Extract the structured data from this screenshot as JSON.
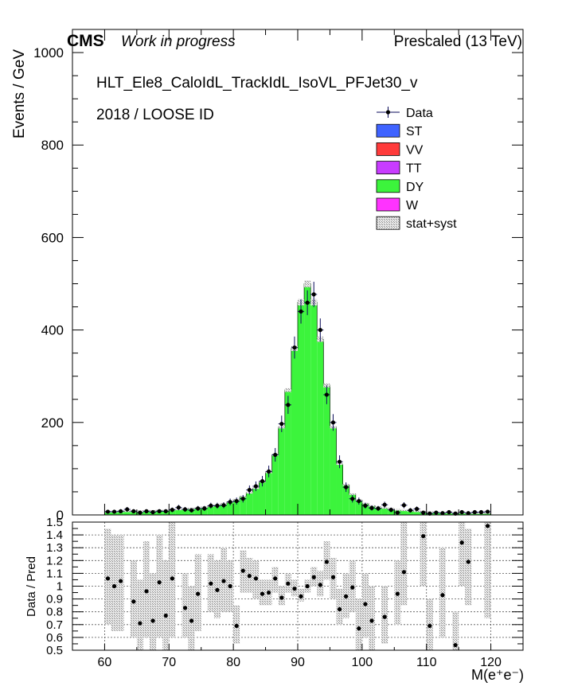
{
  "header": {
    "cms": "CMS",
    "status": "Work in progress",
    "energy": "Prescaled (13 TeV)"
  },
  "annotations": {
    "trigger": "HLT_Ele8_CaloIdL_TrackIdL_IsoVL_PFJet30_v",
    "selection": "2018 / LOOSE ID"
  },
  "colors": {
    "ST": "#3f63ff",
    "VV": "#ff3b3b",
    "TT": "#c83cff",
    "DY": "#3cf43c",
    "W": "#ff33ff",
    "data": "#000000",
    "frame": "#000000"
  },
  "chart_data": [
    {
      "type": "bar",
      "panel": "main",
      "ylabel": "Events / GeV",
      "xlim": [
        55,
        125
      ],
      "ylim": [
        0,
        1050
      ],
      "yticks": [
        0,
        200,
        400,
        600,
        800,
        1000
      ],
      "grid": false,
      "legend_placement": "top-right",
      "legend": [
        "Data",
        "ST",
        "VV",
        "TT",
        "DY",
        "W",
        "stat+syst"
      ],
      "bin_edges": [
        60,
        61,
        62,
        63,
        64,
        65,
        66,
        67,
        68,
        69,
        70,
        71,
        72,
        73,
        74,
        75,
        76,
        77,
        78,
        79,
        80,
        81,
        82,
        83,
        84,
        85,
        86,
        87,
        88,
        89,
        90,
        91,
        92,
        93,
        94,
        95,
        96,
        97,
        98,
        99,
        100,
        101,
        102,
        103,
        104,
        105,
        106,
        107,
        108,
        109,
        110,
        111,
        112,
        113,
        114,
        115,
        116,
        117,
        118,
        119,
        120
      ],
      "series": [
        {
          "name": "DY",
          "values": [
            7,
            7,
            8,
            8,
            8,
            8,
            9,
            9,
            10,
            10,
            11,
            12,
            13,
            14,
            15,
            17,
            19,
            21,
            24,
            28,
            33,
            40,
            48,
            58,
            72,
            92,
            130,
            190,
            270,
            360,
            460,
            500,
            460,
            380,
            280,
            190,
            110,
            65,
            45,
            32,
            25,
            20,
            17,
            15,
            13,
            11,
            10,
            9,
            8,
            7,
            6,
            6,
            5,
            5,
            5,
            5,
            4,
            4,
            4,
            4
          ]
        }
      ],
      "data": [
        7,
        7,
        8,
        12,
        8,
        5,
        8,
        6,
        8,
        8,
        11,
        16,
        12,
        10,
        14,
        14,
        20,
        20,
        21,
        28,
        30,
        35,
        54,
        62,
        73,
        94,
        130,
        197,
        238,
        362,
        440,
        459,
        477,
        400,
        260,
        200,
        115,
        60,
        35,
        30,
        20,
        15,
        14,
        22,
        11,
        5,
        21,
        10,
        13,
        5,
        3,
        5,
        4,
        6,
        3,
        6,
        4,
        6,
        6,
        7
      ]
    },
    {
      "type": "scatter",
      "panel": "ratio",
      "xlabel": "M(e⁺e⁻)",
      "ylabel": "Data / Pred",
      "xlim": [
        55,
        125
      ],
      "ylim": [
        0.5,
        1.5
      ],
      "xticks": [
        60,
        70,
        80,
        90,
        100,
        110,
        120
      ],
      "yticks": [
        0.5,
        0.6,
        0.7,
        0.8,
        0.9,
        1,
        1.1,
        1.2,
        1.3,
        1.4,
        1.5
      ],
      "grid": true,
      "x": [
        60.5,
        61.5,
        62.5,
        64.5,
        65.5,
        66.5,
        67.5,
        68.5,
        69.5,
        70.5,
        72.5,
        73.5,
        74.5,
        76.5,
        77.5,
        78.5,
        79.5,
        80.5,
        81.5,
        82.5,
        83.5,
        84.5,
        85.5,
        86.5,
        87.5,
        88.5,
        89.5,
        90.5,
        91.5,
        92.5,
        93.5,
        94.5,
        95.5,
        96.5,
        97.5,
        98.5,
        99.5,
        100.5,
        101.5,
        103.5,
        105.5,
        106.5,
        109.5,
        110.5,
        112.5,
        114.5,
        115.5,
        116.5,
        119.5
      ],
      "y": [
        1.06,
        1.0,
        1.04,
        0.88,
        0.71,
        0.96,
        0.73,
        1.03,
        0.77,
        1.06,
        0.83,
        0.73,
        0.94,
        1.02,
        0.97,
        1.04,
        1.0,
        0.69,
        1.12,
        1.08,
        1.06,
        0.94,
        0.95,
        1.06,
        0.91,
        1.02,
        0.98,
        0.92,
        1.0,
        1.07,
        1.01,
        1.19,
        1.07,
        0.82,
        0.92,
        0.99,
        0.67,
        0.86,
        0.73,
        0.76,
        0.94,
        1.11,
        1.39,
        0.69,
        0.93,
        0.54,
        1.34,
        1.19,
        1.47
      ],
      "band_low": [
        0.7,
        0.65,
        0.65,
        0.6,
        0.5,
        0.6,
        0.5,
        0.6,
        0.5,
        0.6,
        0.6,
        0.5,
        0.65,
        0.8,
        0.75,
        0.8,
        0.8,
        0.55,
        0.95,
        0.95,
        0.9,
        0.85,
        0.85,
        0.95,
        0.85,
        0.95,
        0.92,
        0.88,
        0.95,
        1.0,
        0.92,
        1.05,
        0.9,
        0.7,
        0.75,
        0.8,
        0.5,
        0.6,
        0.5,
        0.55,
        0.7,
        0.85,
        1.0,
        0.5,
        0.6,
        0.5,
        1.0,
        0.85,
        0.75
      ],
      "band_high": [
        1.45,
        1.4,
        1.4,
        1.2,
        1.05,
        1.35,
        1.1,
        1.4,
        1.2,
        1.5,
        1.1,
        1.0,
        1.25,
        1.25,
        1.2,
        1.3,
        1.2,
        0.85,
        1.28,
        1.22,
        1.2,
        1.05,
        1.05,
        1.15,
        1.0,
        1.1,
        1.05,
        0.98,
        1.05,
        1.15,
        1.12,
        1.35,
        1.22,
        0.98,
        1.1,
        1.2,
        0.9,
        1.1,
        1.0,
        1.0,
        1.2,
        1.5,
        1.5,
        0.9,
        1.3,
        0.8,
        1.5,
        1.45,
        1.5
      ]
    }
  ]
}
